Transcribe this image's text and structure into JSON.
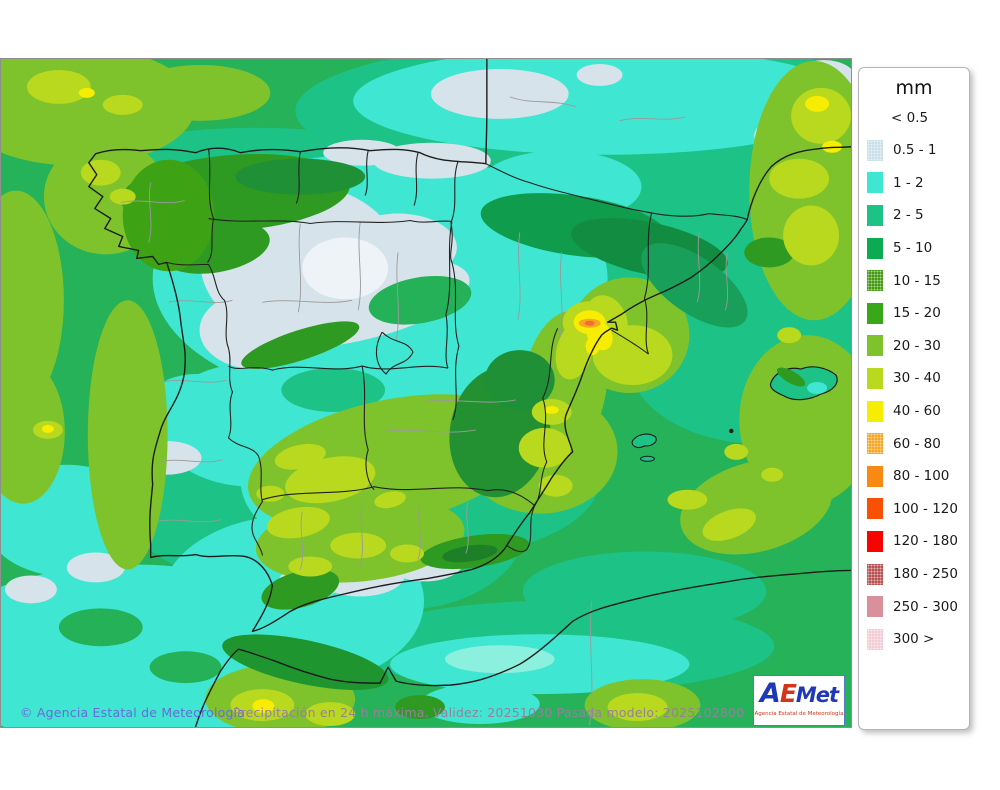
{
  "legend": {
    "title": "mm",
    "below_min_label": "< 0.5",
    "items": [
      {
        "label": "0.5 - 1",
        "color": "#c9e0e8",
        "dotted": true
      },
      {
        "label": "1 - 2",
        "color": "#3fe7d2",
        "dotted": false
      },
      {
        "label": "2 - 5",
        "color": "#1dc287",
        "dotted": false
      },
      {
        "label": "5 - 10",
        "color": "#0caa52",
        "dotted": false
      },
      {
        "label": "10 - 15",
        "color": "#459a12",
        "dotted": true
      },
      {
        "label": "15 - 20",
        "color": "#38a81a",
        "dotted": false
      },
      {
        "label": "20 - 30",
        "color": "#7ec32c",
        "dotted": false
      },
      {
        "label": "30 - 40",
        "color": "#b9d91e",
        "dotted": false
      },
      {
        "label": "40 - 60",
        "color": "#f7ed02",
        "dotted": false
      },
      {
        "label": "60 - 80",
        "color": "#f6a624",
        "dotted": true
      },
      {
        "label": "80 - 100",
        "color": "#f88912",
        "dotted": false
      },
      {
        "label": "100 - 120",
        "color": "#f85106",
        "dotted": false
      },
      {
        "label": "120 - 180",
        "color": "#f80400",
        "dotted": false
      },
      {
        "label": "180 - 250",
        "color": "#b85252",
        "dotted": true
      },
      {
        "label": "250 - 300",
        "color": "#d8909a",
        "dotted": false
      },
      {
        "label": "300 >",
        "color": "#f2ccd4",
        "dotted": true
      }
    ]
  },
  "footer": {
    "copyright": "© Agencia Estatal de Meteorología",
    "caption": "Precipitación en 24 h máxima. Validez: 20251030 Pasada modelo: 2025102800"
  },
  "logo": {
    "part_a": "A",
    "part_e": "E",
    "part_met": "Met",
    "subtitle": "Agencia Estatal de Meteorología"
  }
}
